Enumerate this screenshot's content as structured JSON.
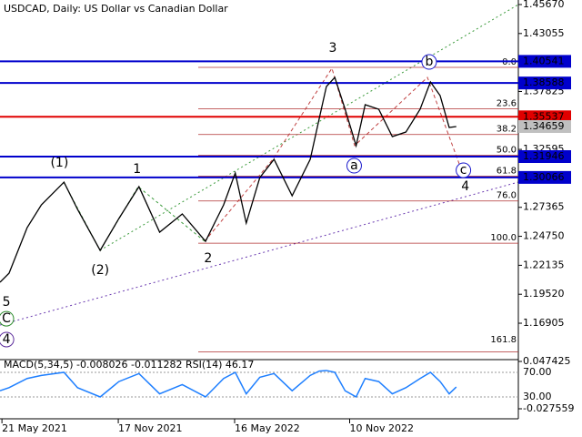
{
  "chart_data": {
    "type": "line",
    "title": "USDCAD, Daily:  US Dollar vs Canadian Dollar",
    "x": [
      "2021-05-18",
      "2021-06-01",
      "2021-06-29",
      "2021-07-21",
      "2021-08-25",
      "2021-09-15",
      "2021-10-20",
      "2021-11-18",
      "2021-12-19",
      "2022-01-20",
      "2022-02-24",
      "2022-04-01",
      "2022-04-29",
      "2022-05-17",
      "2022-06-03",
      "2022-06-24",
      "2022-07-16",
      "2022-08-13",
      "2022-09-10",
      "2022-09-24",
      "2022-10-05",
      "2022-10-18",
      "2022-11-03",
      "2022-11-20",
      "2022-12-04",
      "2022-12-25",
      "2023-01-15",
      "2023-02-05",
      "2023-02-27",
      "2023-03-15",
      "2023-03-30",
      "2023-04-13",
      "2023-04-24"
    ],
    "series": [
      {
        "color": "#000000",
        "values": [
          1.206,
          1.2142,
          1.2553,
          1.2759,
          1.2964,
          1.2718,
          1.2348,
          1.2636,
          1.2923,
          1.2512,
          1.2677,
          1.243,
          1.2759,
          1.3046,
          1.2594,
          1.3005,
          1.317,
          1.2841,
          1.317,
          1.354,
          1.3827,
          1.3909,
          1.3622,
          1.3293,
          1.3663,
          1.3622,
          1.3375,
          1.3416,
          1.3622,
          1.3868,
          1.3745,
          1.3457,
          1.3466
        ]
      }
    ],
    "xlim": [
      "2021-05-18",
      "2023-07-29"
    ],
    "xticks": [
      {
        "value": "2021-05-21",
        "label": "21 May 2021"
      },
      {
        "value": "2021-11-17",
        "label": "17 Nov 2021"
      },
      {
        "value": "2022-05-16",
        "label": "16 May 2022"
      },
      {
        "value": "2022-11-10",
        "label": "10 Nov 2022"
      }
    ],
    "ylim": [
      1.1362,
      1.4608
    ],
    "yticks": [
      {
        "value": 1.4567,
        "label": "1.45670"
      },
      1.43055,
      1.37825,
      1.32595,
      1.27365,
      {
        "value": 1.2475,
        "label": "1.24750"
      },
      1.22135,
      {
        "value": 1.1952,
        "label": "1.19520"
      },
      1.16905
    ],
    "levels": [
      {
        "value": 1.40541,
        "color": "#0000cc"
      },
      {
        "value": 1.38588,
        "color": "#0000cc"
      },
      {
        "value": 1.35537,
        "color": "#e00000"
      },
      {
        "value": 1.31946,
        "color": "#0000cc"
      },
      {
        "value": 1.30066,
        "color": "#0000cc"
      }
    ],
    "current_price": {
      "value": 1.34659,
      "color": "#c0c0c0"
    },
    "fib_levels": [
      {
        "label": "0.0",
        "price": 1.4
      },
      {
        "label": "23.6",
        "price": 1.3625
      },
      {
        "label": "38.2",
        "price": 1.3394
      },
      {
        "label": "50.0",
        "price": 1.3207
      },
      {
        "label": "61.8",
        "price": 1.3019
      },
      {
        "label": "76.0",
        "price": 1.2794
      },
      {
        "label": "100.0",
        "price": 1.2413
      },
      {
        "label": "161.8",
        "price": 1.1432
      }
    ],
    "fib_color": "#b03030",
    "annotations": [
      {
        "text": "3",
        "x": "2022-10-15",
        "price": 1.4172,
        "color": "#b03030",
        "circle": false
      },
      {
        "text": "1",
        "x": "2021-12-16",
        "price": 1.308,
        "color": "#b03030",
        "circle": false
      },
      {
        "text": "2",
        "x": "2022-04-05",
        "price": 1.2274,
        "color": "#b03030",
        "circle": false
      },
      {
        "text": "4",
        "x": "2023-05-08",
        "price": 1.2923,
        "color": "#b03030",
        "circle": false
      },
      {
        "text": "5",
        "x": "2021-05-28",
        "price": 1.188,
        "color": "#b03030",
        "circle": false
      },
      {
        "text": "(1)",
        "x": "2021-08-18",
        "price": 1.3137,
        "color": "#2a8a2a",
        "circle": false
      },
      {
        "text": "(2)",
        "x": "2021-10-20",
        "price": 1.2167,
        "color": "#2a8a2a",
        "circle": false
      },
      {
        "text": "b",
        "x": "2023-03-13",
        "price": 1.4049,
        "color": "#1a1acc",
        "circle": true
      },
      {
        "text": "a",
        "x": "2022-11-17",
        "price": 1.3112,
        "color": "#1a1acc",
        "circle": true
      },
      {
        "text": "c",
        "x": "2023-05-05",
        "price": 1.3071,
        "color": "#1a1acc",
        "circle": true
      },
      {
        "text": "C",
        "x": "2021-05-26",
        "price": 1.1731,
        "color": "#2a8a2a",
        "circle": true
      },
      {
        "text": "4",
        "x": "2021-05-28",
        "price": 1.1543,
        "color": "#5a2a9a",
        "circle": true
      }
    ],
    "indicator": {
      "label": "MACD(5,34,5) -0.008026 -0.011282 RSI(14) 46.17",
      "color": "#1e7fff",
      "values": [
        40,
        45,
        60,
        65,
        70,
        45,
        30,
        55,
        68,
        35,
        50,
        30,
        60,
        70,
        35,
        62,
        68,
        40,
        65,
        72,
        73,
        70,
        40,
        30,
        60,
        55,
        35,
        45,
        60,
        70,
        55,
        35,
        46.17
      ],
      "ylim": [
        -5.6,
        90.7
      ],
      "yticks": [
        {
          "value": 70,
          "label": "70.00"
        },
        {
          "value": 30,
          "label": "30.00"
        }
      ],
      "macd_ylim": [
        -0.027559,
        0.047425
      ],
      "macd_ticks": [
        0.047425,
        -0.027559
      ]
    }
  }
}
